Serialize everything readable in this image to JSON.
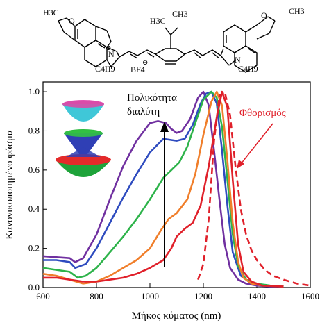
{
  "molecule": {
    "left_methyl": "H3C",
    "right_methyl": "CH3",
    "top_dimethyl": "H3C",
    "top_dimethyl_right": "CH3",
    "n_plus": "N",
    "plus_sign": "⊕",
    "left_butyl": "C4H9",
    "right_butyl": "C4H9",
    "counterion": "BF4",
    "minus_sign": "⊖",
    "left_oxygen": "O",
    "right_oxygen": "O",
    "right_n": "N"
  },
  "chart_data": {
    "type": "line",
    "xlabel": "Μήκος κύματος (nm)",
    "ylabel": "Κανονικοποιημένο φάσμα",
    "xlim": [
      600,
      1600
    ],
    "ylim": [
      0,
      1.05
    ],
    "xticks": [
      600,
      800,
      1000,
      1200,
      1400,
      1600
    ],
    "yticks": [
      0.0,
      0.2,
      0.4,
      0.6,
      0.8,
      1.0
    ],
    "ytick_labels": [
      "0.0",
      "0.2",
      "0.4",
      "0.6",
      "0.8",
      "1.0"
    ],
    "series": [
      {
        "color": "#7030a0",
        "style": "solid",
        "x": [
          600,
          650,
          700,
          720,
          750,
          800,
          850,
          900,
          950,
          1000,
          1030,
          1060,
          1080,
          1100,
          1120,
          1150,
          1180,
          1200,
          1220,
          1240,
          1260,
          1280,
          1300,
          1330,
          1360,
          1400,
          1450,
          1500
        ],
        "y": [
          0.16,
          0.155,
          0.15,
          0.13,
          0.15,
          0.27,
          0.45,
          0.62,
          0.75,
          0.84,
          0.85,
          0.84,
          0.81,
          0.79,
          0.8,
          0.86,
          0.97,
          1.0,
          0.93,
          0.7,
          0.45,
          0.22,
          0.1,
          0.04,
          0.02,
          0.01,
          0.005,
          0.005
        ]
      },
      {
        "color": "#2e4bbf",
        "style": "solid",
        "x": [
          600,
          650,
          700,
          720,
          760,
          800,
          850,
          900,
          950,
          1000,
          1050,
          1100,
          1130,
          1160,
          1190,
          1210,
          1230,
          1250,
          1270,
          1290,
          1310,
          1340,
          1380,
          1420,
          1500
        ],
        "y": [
          0.14,
          0.14,
          0.13,
          0.1,
          0.12,
          0.2,
          0.33,
          0.46,
          0.58,
          0.69,
          0.76,
          0.75,
          0.76,
          0.83,
          0.94,
          0.99,
          1.0,
          0.94,
          0.7,
          0.42,
          0.18,
          0.06,
          0.02,
          0.01,
          0.005
        ]
      },
      {
        "color": "#2db34a",
        "style": "solid",
        "x": [
          600,
          650,
          700,
          730,
          760,
          800,
          850,
          900,
          950,
          1000,
          1050,
          1080,
          1110,
          1140,
          1170,
          1200,
          1230,
          1250,
          1270,
          1290,
          1310,
          1330,
          1360,
          1400,
          1450,
          1500
        ],
        "y": [
          0.1,
          0.09,
          0.08,
          0.05,
          0.06,
          0.1,
          0.18,
          0.26,
          0.35,
          0.45,
          0.56,
          0.6,
          0.64,
          0.72,
          0.84,
          0.96,
          1.0,
          0.97,
          0.82,
          0.55,
          0.27,
          0.11,
          0.04,
          0.02,
          0.01,
          0.005
        ]
      },
      {
        "color": "#f07e2a",
        "style": "solid",
        "x": [
          600,
          650,
          700,
          750,
          800,
          850,
          900,
          950,
          1000,
          1040,
          1070,
          1100,
          1140,
          1170,
          1200,
          1230,
          1250,
          1270,
          1290,
          1310,
          1330,
          1350,
          1380,
          1420,
          1500
        ],
        "y": [
          0.07,
          0.06,
          0.04,
          0.02,
          0.03,
          0.06,
          0.1,
          0.14,
          0.2,
          0.29,
          0.35,
          0.38,
          0.45,
          0.58,
          0.78,
          0.95,
          1.0,
          0.93,
          0.65,
          0.33,
          0.13,
          0.05,
          0.02,
          0.01,
          0.005
        ]
      },
      {
        "color": "#e0202a",
        "style": "solid",
        "x": [
          600,
          650,
          700,
          750,
          800,
          850,
          900,
          950,
          1000,
          1050,
          1080,
          1100,
          1130,
          1160,
          1190,
          1220,
          1250,
          1270,
          1290,
          1310,
          1330,
          1350,
          1380,
          1420,
          1500
        ],
        "y": [
          0.05,
          0.05,
          0.04,
          0.03,
          0.03,
          0.04,
          0.05,
          0.07,
          0.1,
          0.14,
          0.2,
          0.26,
          0.3,
          0.33,
          0.42,
          0.62,
          0.87,
          1.0,
          0.92,
          0.55,
          0.22,
          0.08,
          0.03,
          0.01,
          0.005
        ]
      },
      {
        "name": "Φθορισμός",
        "color": "#e0202a",
        "style": "dashed",
        "x": [
          1180,
          1200,
          1220,
          1240,
          1260,
          1280,
          1300,
          1320,
          1340,
          1360,
          1380,
          1400,
          1430,
          1460,
          1500,
          1550,
          1600
        ],
        "y": [
          0.04,
          0.12,
          0.35,
          0.75,
          0.98,
          1.0,
          0.88,
          0.62,
          0.4,
          0.27,
          0.19,
          0.14,
          0.09,
          0.06,
          0.04,
          0.02,
          0.01
        ]
      }
    ],
    "annotations": {
      "polarity_label_line1": "Πολικότητα",
      "polarity_label_line2": "διαλύτη",
      "fluorescence_label": "Φθορισμός"
    },
    "grid": false
  },
  "colors": {
    "arrow_black": "#000000",
    "fluorescence_red": "#e0202a",
    "axis": "#000000"
  },
  "icons": {
    "inset_shapes": [
      "cyan-magenta-bowl-icon",
      "blue-green-cone-icon",
      "red-green-double-bowl-icon"
    ]
  }
}
